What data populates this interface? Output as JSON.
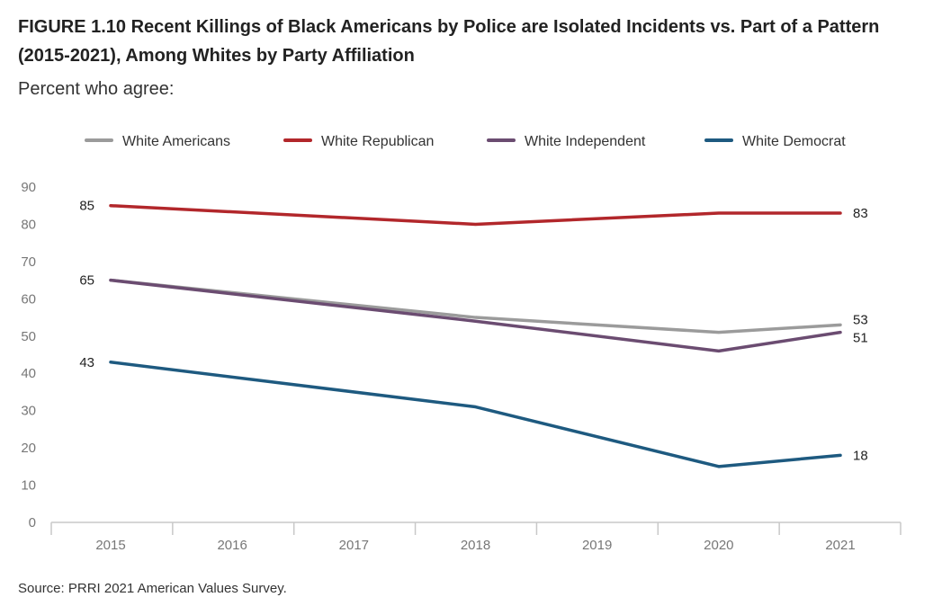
{
  "title": "FIGURE 1.10  Recent Killings of Black Americans by Police are Isolated Incidents vs. Part of a Pattern (2015-2021), Among Whites by Party Affiliation",
  "subtitle": "Percent who agree:",
  "source": "Source: PRRI 2021 American Values Survey.",
  "colors": {
    "White Americans": "#9b9b9b",
    "White Republican": "#b2272b",
    "White Independent": "#6b4c71",
    "White Democrat": "#1e5a80"
  },
  "chart_data": {
    "type": "line",
    "title": "FIGURE 1.10  Recent Killings of Black Americans by Police are Isolated Incidents vs. Part of a Pattern (2015-2021), Among Whites by Party Affiliation",
    "subtitle": "Percent who agree:",
    "categories": [
      "2015",
      "2016",
      "2017",
      "2018",
      "2019",
      "2020",
      "2021"
    ],
    "ylim": [
      0,
      90
    ],
    "yticks": [
      0,
      10,
      20,
      30,
      40,
      50,
      60,
      70,
      80,
      90
    ],
    "legend_position": "top",
    "grid": false,
    "series": [
      {
        "name": "White Americans",
        "x": [
          "2015",
          "2018",
          "2020",
          "2021"
        ],
        "values": [
          65,
          55,
          51,
          53
        ],
        "start_label": "65",
        "end_label": "53"
      },
      {
        "name": "White Republican",
        "x": [
          "2015",
          "2018",
          "2020",
          "2021"
        ],
        "values": [
          85,
          80,
          83,
          83
        ],
        "start_label": "85",
        "end_label": "83"
      },
      {
        "name": "White Independent",
        "x": [
          "2015",
          "2018",
          "2020",
          "2021"
        ],
        "values": [
          65,
          54,
          46,
          51
        ],
        "start_label": "",
        "end_label": "51"
      },
      {
        "name": "White Democrat",
        "x": [
          "2015",
          "2018",
          "2020",
          "2021"
        ],
        "values": [
          43,
          31,
          15,
          18
        ],
        "start_label": "43",
        "end_label": "18"
      }
    ]
  }
}
